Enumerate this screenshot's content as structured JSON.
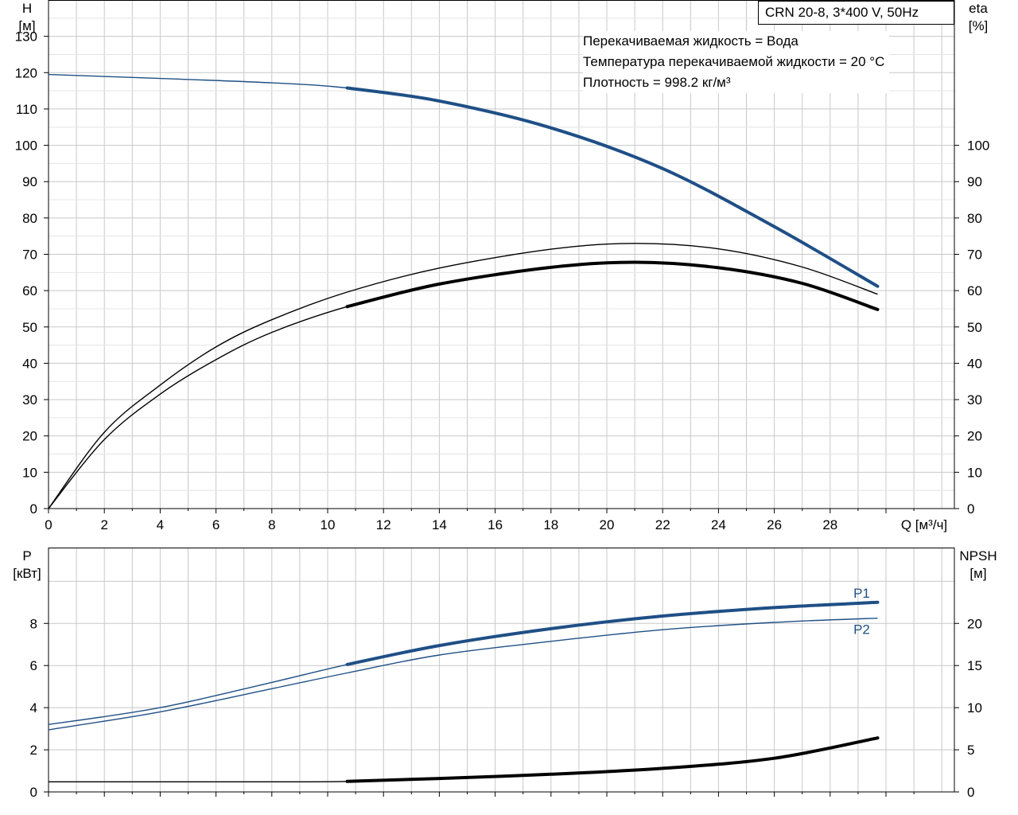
{
  "title": "CRN 20-8, 3*400 V, 50Hz",
  "legend_lines": [
    "Перекачиваемая жидкость = Вода",
    "Температура перекачиваемой жидкости = 20 °C",
    "Плотность = 998.2 кг/м³"
  ],
  "colors": {
    "blue": "#1f4f86",
    "black": "#000000",
    "grid": "#c8c8c8"
  },
  "chart_data": [
    {
      "type": "line",
      "title": "",
      "xlabel": "Q [м³/ч]",
      "x_ticks": [
        "0",
        "2",
        "4",
        "6",
        "8",
        "10",
        "12",
        "14",
        "16",
        "18",
        "20",
        "22",
        "24",
        "26",
        "28"
      ],
      "xlim": [
        0,
        32
      ],
      "left_axis": {
        "label_top": "H",
        "label_unit": "[м]",
        "ylim": [
          0,
          140
        ],
        "ticks": [
          "0",
          "10",
          "20",
          "30",
          "40",
          "50",
          "60",
          "70",
          "80",
          "90",
          "100",
          "110",
          "120",
          "130"
        ]
      },
      "right_axis": {
        "label_top": "eta",
        "label_unit": "[%]",
        "ylim": [
          0,
          140
        ],
        "ticks": [
          "0",
          "10",
          "20",
          "30",
          "40",
          "50",
          "60",
          "70",
          "80",
          "90",
          "100"
        ]
      },
      "grid": true,
      "series": [
        {
          "key": "H",
          "axis": "left",
          "color": "#1f4f86",
          "x": [
            0,
            4,
            8,
            10.7,
            14,
            18,
            22,
            26,
            29.7
          ],
          "y": [
            119.5,
            118.4,
            117.2,
            115.8,
            112.2,
            104.8,
            93.6,
            77.6,
            61.2
          ],
          "highlight_from": 10.7
        },
        {
          "key": "eta_unit",
          "axis": "right",
          "color": "#000000",
          "x": [
            0,
            2,
            4,
            6,
            8,
            10.7,
            14,
            18,
            21,
            24,
            27,
            29.7
          ],
          "y": [
            0,
            21,
            34,
            44.5,
            52,
            59.6,
            66.2,
            71.4,
            73,
            71.5,
            66.5,
            59
          ],
          "highlight_from": 29.7
        },
        {
          "key": "eta_pump",
          "axis": "right",
          "color": "#000000",
          "x": [
            0,
            2,
            4,
            6,
            8,
            10.7,
            14,
            18,
            21,
            24,
            27,
            29.7
          ],
          "y": [
            0,
            19,
            31.5,
            41,
            48.5,
            55.6,
            61.8,
            66.4,
            67.8,
            66.3,
            62,
            54.8
          ],
          "highlight_from": 10.7
        }
      ]
    },
    {
      "type": "line",
      "title": "",
      "xlim": [
        0,
        32
      ],
      "left_axis": {
        "label_top": "P",
        "label_unit": "[кВт]",
        "ylim": [
          0,
          11.6
        ],
        "ticks": [
          "0",
          "2",
          "4",
          "6",
          "8"
        ]
      },
      "right_axis": {
        "label_top": "NPSH",
        "label_unit": "[м]",
        "ylim": [
          0,
          29
        ],
        "ticks": [
          "0",
          "5",
          "10",
          "15",
          "20"
        ]
      },
      "grid": true,
      "series": [
        {
          "key": "P1",
          "name": "P1",
          "axis": "left",
          "color": "#1f4f86",
          "x": [
            0,
            4,
            8,
            10.7,
            14,
            18,
            22,
            26,
            29.7
          ],
          "y": [
            3.2,
            4.0,
            5.2,
            6.05,
            6.95,
            7.75,
            8.35,
            8.75,
            9.0
          ],
          "highlight_from": 10.7
        },
        {
          "key": "P2",
          "name": "P2",
          "axis": "left",
          "color": "#1f4f86",
          "x": [
            0,
            4,
            8,
            10.7,
            14,
            18,
            22,
            26,
            29.7
          ],
          "y": [
            2.95,
            3.8,
            4.9,
            5.65,
            6.5,
            7.15,
            7.7,
            8.05,
            8.25
          ],
          "highlight_from": 29.7
        },
        {
          "key": "NPSH",
          "axis": "right",
          "color": "#000000",
          "x": [
            0,
            4,
            8,
            10.7,
            14,
            18,
            22,
            26,
            29.7
          ],
          "y": [
            1.2,
            1.2,
            1.2,
            1.25,
            1.6,
            2.1,
            2.8,
            4.0,
            6.4
          ],
          "highlight_from": 10.7
        }
      ]
    }
  ]
}
